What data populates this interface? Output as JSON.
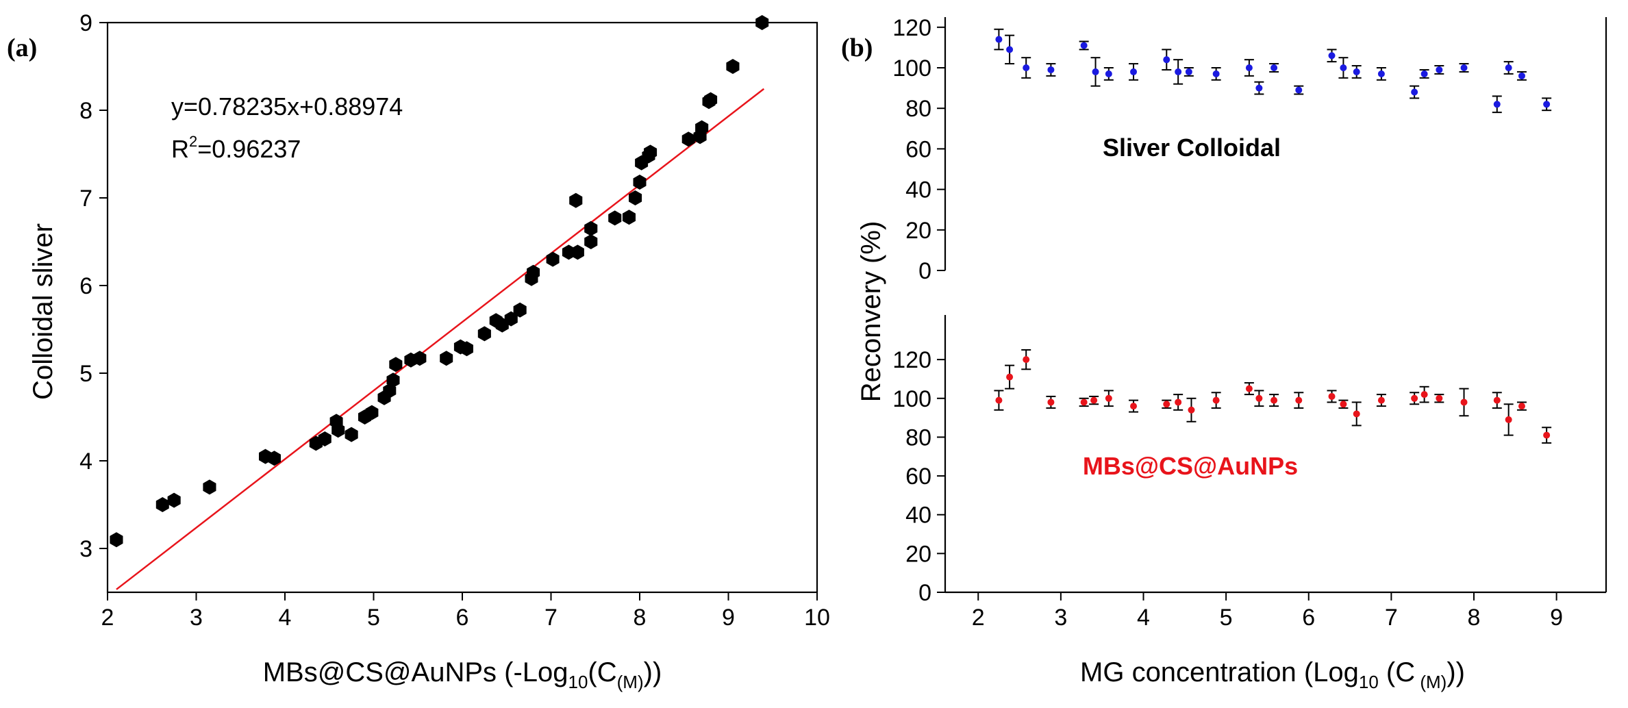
{
  "chart_data": [
    {
      "type": "scatter",
      "panel_label": "(a)",
      "xlabel": "MBs@CS@AuNPs (-Log",
      "xlabel_sub": "10",
      "xlabel_mid": "(C",
      "xlabel_sub2": "(M)",
      "xlabel_end": "))",
      "ylabel": "Colloidal sliver",
      "xlim": [
        2,
        10
      ],
      "ylim": [
        2.5,
        9
      ],
      "xticks": [
        2,
        3,
        4,
        5,
        6,
        7,
        8,
        9,
        10
      ],
      "yticks": [
        3,
        4,
        5,
        6,
        7,
        8,
        9
      ],
      "equation": "y=0.78235x+0.88974",
      "r2_prefix": "R",
      "r2_sup": "2",
      "r2_value": "=0.96237",
      "fit": {
        "slope": 0.78235,
        "intercept": 0.88974,
        "x_range": [
          2.1,
          9.4
        ],
        "color": "#e8141b"
      },
      "marker_color": "#000000",
      "points": [
        [
          2.1,
          3.1
        ],
        [
          2.62,
          3.5
        ],
        [
          2.75,
          3.55
        ],
        [
          3.15,
          3.7
        ],
        [
          3.78,
          4.05
        ],
        [
          3.88,
          4.03
        ],
        [
          4.35,
          4.2
        ],
        [
          4.45,
          4.25
        ],
        [
          4.58,
          4.45
        ],
        [
          4.6,
          4.35
        ],
        [
          4.75,
          4.3
        ],
        [
          4.9,
          4.5
        ],
        [
          4.98,
          4.55
        ],
        [
          5.12,
          4.72
        ],
        [
          5.18,
          4.8
        ],
        [
          5.22,
          4.92
        ],
        [
          5.25,
          5.1
        ],
        [
          5.42,
          5.15
        ],
        [
          5.52,
          5.17
        ],
        [
          5.82,
          5.17
        ],
        [
          5.98,
          5.3
        ],
        [
          6.05,
          5.28
        ],
        [
          6.25,
          5.45
        ],
        [
          6.38,
          5.6
        ],
        [
          6.45,
          5.55
        ],
        [
          6.55,
          5.62
        ],
        [
          6.65,
          5.72
        ],
        [
          6.78,
          6.08
        ],
        [
          6.8,
          6.15
        ],
        [
          7.02,
          6.3
        ],
        [
          7.2,
          6.38
        ],
        [
          7.3,
          6.38
        ],
        [
          7.28,
          6.97
        ],
        [
          7.45,
          6.5
        ],
        [
          7.45,
          6.65
        ],
        [
          7.72,
          6.77
        ],
        [
          7.88,
          6.78
        ],
        [
          7.95,
          7.0
        ],
        [
          8.0,
          7.18
        ],
        [
          8.02,
          7.4
        ],
        [
          8.1,
          7.48
        ],
        [
          8.12,
          7.52
        ],
        [
          8.55,
          7.67
        ],
        [
          8.68,
          7.7
        ],
        [
          8.7,
          7.8
        ],
        [
          8.78,
          8.1
        ],
        [
          8.8,
          8.12
        ],
        [
          9.05,
          8.5
        ],
        [
          9.38,
          9.0
        ]
      ]
    },
    {
      "type": "scatter",
      "panel_label": "(b)",
      "xlabel": "MG concentration (Log",
      "xlabel_sub": "10",
      "xlabel_mid": " (C",
      "xlabel_sub2": " (M)",
      "xlabel_end": "))",
      "ylabel": "Reconvery (%)",
      "xlim": [
        1.6,
        9.6
      ],
      "xticks": [
        2,
        3,
        4,
        5,
        6,
        7,
        8,
        9
      ],
      "subplots": [
        {
          "name": "Sliver Colloidal",
          "color": "#1a1ae0",
          "label_color": "#000000",
          "ylim": [
            0,
            125
          ],
          "yticks": [
            0,
            20,
            40,
            60,
            80,
            100,
            120
          ],
          "points": [
            [
              2.25,
              114,
              5
            ],
            [
              2.38,
              109,
              7
            ],
            [
              2.58,
              100,
              5
            ],
            [
              2.88,
              99,
              3
            ],
            [
              3.28,
              111,
              2
            ],
            [
              3.42,
              98,
              7
            ],
            [
              3.58,
              97,
              3
            ],
            [
              3.88,
              98,
              4
            ],
            [
              4.28,
              104,
              5
            ],
            [
              4.42,
              98,
              6
            ],
            [
              4.55,
              98,
              2
            ],
            [
              4.88,
              97,
              3
            ],
            [
              5.28,
              100,
              4
            ],
            [
              5.4,
              90,
              3
            ],
            [
              5.58,
              100,
              2
            ],
            [
              5.88,
              89,
              2
            ],
            [
              6.28,
              106,
              3
            ],
            [
              6.42,
              100,
              5
            ],
            [
              6.58,
              98,
              3
            ],
            [
              6.88,
              97,
              3
            ],
            [
              7.28,
              88,
              3
            ],
            [
              7.4,
              97,
              2
            ],
            [
              7.58,
              99,
              2
            ],
            [
              7.88,
              100,
              2
            ],
            [
              8.28,
              82,
              4
            ],
            [
              8.42,
              100,
              3
            ],
            [
              8.58,
              96,
              2
            ],
            [
              8.88,
              82,
              3
            ]
          ]
        },
        {
          "name": "MBs@CS@AuNPs",
          "color": "#e8141b",
          "label_color": "#e8141b",
          "ylim": [
            0,
            143
          ],
          "yticks": [
            0,
            20,
            40,
            60,
            80,
            100,
            120
          ],
          "points": [
            [
              2.25,
              99,
              5
            ],
            [
              2.38,
              111,
              6
            ],
            [
              2.58,
              120,
              5
            ],
            [
              2.88,
              98,
              3
            ],
            [
              3.28,
              98,
              2
            ],
            [
              3.4,
              99,
              2
            ],
            [
              3.58,
              100,
              4
            ],
            [
              3.88,
              96,
              3
            ],
            [
              4.28,
              97,
              2
            ],
            [
              4.42,
              98,
              4
            ],
            [
              4.58,
              94,
              6
            ],
            [
              4.88,
              99,
              4
            ],
            [
              5.28,
              105,
              3
            ],
            [
              5.4,
              100,
              4
            ],
            [
              5.58,
              99,
              3
            ],
            [
              5.88,
              99,
              4
            ],
            [
              6.28,
              101,
              3
            ],
            [
              6.42,
              97,
              2
            ],
            [
              6.58,
              92,
              6
            ],
            [
              6.88,
              99,
              3
            ],
            [
              7.28,
              100,
              3
            ],
            [
              7.4,
              102,
              4
            ],
            [
              7.58,
              100,
              2
            ],
            [
              7.88,
              98,
              7
            ],
            [
              8.28,
              99,
              4
            ],
            [
              8.42,
              89,
              8
            ],
            [
              8.58,
              96,
              2
            ],
            [
              8.88,
              81,
              4
            ]
          ]
        }
      ]
    }
  ]
}
